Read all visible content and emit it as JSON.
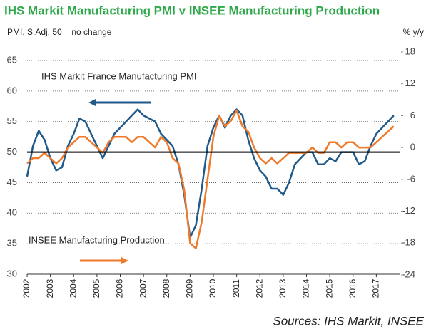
{
  "chart_data": {
    "type": "line",
    "title": "IHS Markit Manufacturing PMI v INSEE Manufacturing Production",
    "y_label": "PMI, S.Adj, 50 = no change",
    "y2_label": "% y/y",
    "source": "Sources: IHS Markit, INSEE",
    "annotations": [
      "IHS Markit France Manufacturing PMI",
      "INSEE Manufacturing Production"
    ],
    "x": [
      2002,
      2002.25,
      2002.5,
      2002.75,
      2003,
      2003.25,
      2003.5,
      2003.75,
      2004,
      2004.25,
      2004.5,
      2004.75,
      2005,
      2005.25,
      2005.5,
      2005.75,
      2006,
      2006.25,
      2006.5,
      2006.75,
      2007,
      2007.25,
      2007.5,
      2007.75,
      2008,
      2008.25,
      2008.5,
      2008.75,
      2009,
      2009.25,
      2009.5,
      2009.75,
      2010,
      2010.25,
      2010.5,
      2010.75,
      2011,
      2011.25,
      2011.5,
      2011.75,
      2012,
      2012.25,
      2012.5,
      2012.75,
      2013,
      2013.25,
      2013.5,
      2013.75,
      2014,
      2014.25,
      2014.5,
      2014.75,
      2015,
      2015.25,
      2015.5,
      2015.75,
      2016,
      2016.25,
      2016.5,
      2016.75,
      2017,
      2017.25,
      2017.5,
      2017.75
    ],
    "series": [
      {
        "name": "IHS Markit France Manufacturing PMI",
        "color": "#1f5a8a",
        "values": [
          46,
          51,
          53.5,
          52,
          49,
          47,
          47.5,
          51,
          53,
          55.5,
          55,
          53,
          51,
          49,
          51,
          53,
          54,
          55,
          56,
          57,
          56,
          55.5,
          55,
          53,
          52,
          51,
          48,
          43,
          36,
          38,
          44,
          51,
          54,
          56,
          54,
          56,
          57,
          56,
          52,
          49,
          47,
          46,
          44,
          44,
          43,
          45,
          48,
          49,
          50,
          50,
          48,
          48,
          49,
          48.5,
          50,
          50,
          50,
          48,
          48.5,
          51,
          53,
          54,
          55,
          56
        ]
      },
      {
        "name": "INSEE Manufacturing Production",
        "color": "#f07a2a",
        "axis": "y2",
        "values": [
          -3,
          -2,
          -2,
          -1,
          -2,
          -3,
          -2,
          0,
          1,
          2,
          2,
          1,
          0,
          -1,
          1,
          2,
          2,
          2,
          1,
          2,
          2,
          1,
          0,
          2,
          1,
          -2,
          -3,
          -8,
          -18,
          -19,
          -14,
          -6,
          2,
          6,
          4,
          5,
          7,
          4,
          3,
          0,
          -2,
          -3,
          -2,
          -3,
          -2,
          -1,
          -1,
          -1,
          -1,
          0,
          -1,
          -1,
          1,
          1,
          0,
          1,
          1,
          0,
          0,
          0,
          1,
          2,
          3,
          4
        ]
      }
    ],
    "xlim": [
      2002,
      2018
    ],
    "xticks": [
      2002,
      2003,
      2004,
      2005,
      2006,
      2007,
      2008,
      2009,
      2010,
      2011,
      2012,
      2013,
      2014,
      2015,
      2016,
      2017
    ],
    "ylim": [
      30,
      65
    ],
    "yticks": [
      30,
      35,
      40,
      45,
      50,
      55,
      60,
      65
    ],
    "y2lim": [
      -24,
      18
    ],
    "y2ticks": [
      -24,
      -18,
      -12,
      -6,
      0,
      6,
      12,
      18
    ],
    "reference_line": 50,
    "grid": true
  }
}
